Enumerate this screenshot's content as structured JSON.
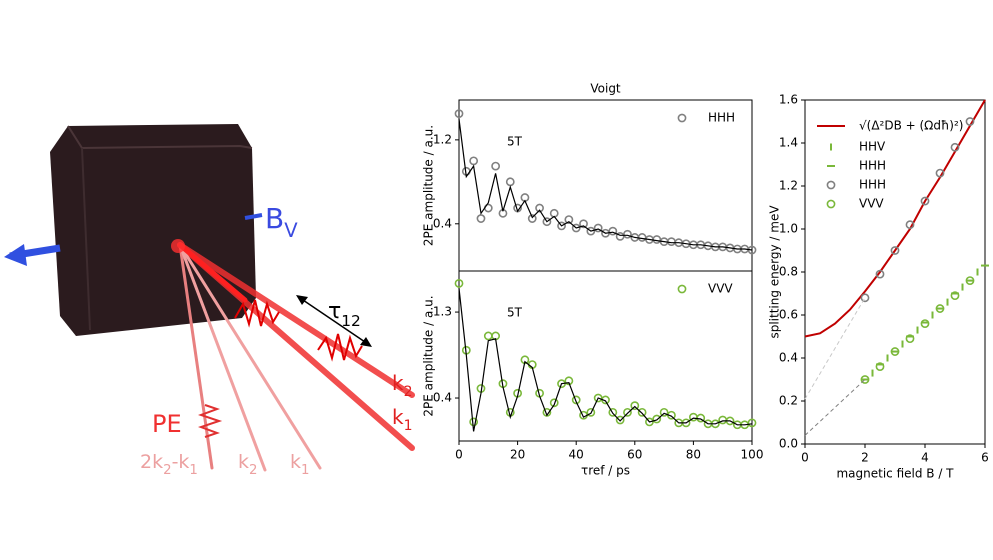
{
  "illustration": {
    "b_field": {
      "parts": [
        "B",
        "V"
      ]
    },
    "delay": {
      "parts": [
        "τ",
        "12"
      ]
    },
    "beam_k2": {
      "parts": [
        "k",
        "2"
      ]
    },
    "beam_k1": {
      "parts": [
        "k",
        "1"
      ]
    },
    "echo": {
      "parts": [
        "PE"
      ]
    },
    "out_echo": {
      "parts": [
        "2k",
        "2",
        "-k",
        "1"
      ]
    },
    "out_k2": {
      "parts": [
        "k",
        "2"
      ]
    },
    "out_k1": {
      "parts": [
        "k",
        "1"
      ]
    }
  },
  "chart_data": [
    {
      "type": "scatter",
      "title": "Voigt",
      "ylabel": "2PE amplitude / a.u.",
      "annotation": "5T",
      "xlim": [
        0,
        100
      ],
      "ylim": [
        -0.05,
        1.58
      ],
      "yticks": [
        0.4,
        1.2
      ],
      "x": [
        0,
        2.5,
        5,
        7.5,
        10,
        12.5,
        15,
        17.5,
        20,
        22.5,
        25,
        27.5,
        30,
        32.5,
        35,
        37.5,
        40,
        42.5,
        45,
        47.5,
        50,
        52.5,
        55,
        57.5,
        60,
        62.5,
        65,
        67.5,
        70,
        72.5,
        75,
        77.5,
        80,
        82.5,
        85,
        87.5,
        90,
        92.5,
        95,
        97.5,
        100
      ],
      "series": [
        {
          "name": "HHH",
          "color": "#808080",
          "marker": "circle",
          "values": [
            1.45,
            0.9,
            1.0,
            0.45,
            0.55,
            0.95,
            0.5,
            0.8,
            0.55,
            0.65,
            0.45,
            0.55,
            0.42,
            0.5,
            0.38,
            0.44,
            0.36,
            0.4,
            0.33,
            0.36,
            0.31,
            0.33,
            0.28,
            0.3,
            0.27,
            0.27,
            0.25,
            0.25,
            0.23,
            0.23,
            0.22,
            0.21,
            0.2,
            0.2,
            0.19,
            0.18,
            0.18,
            0.17,
            0.16,
            0.16,
            0.15
          ]
        },
        {
          "color": "#000000",
          "marker": "line",
          "values": [
            1.4,
            0.85,
            0.95,
            0.5,
            0.6,
            0.88,
            0.52,
            0.75,
            0.52,
            0.62,
            0.46,
            0.53,
            0.42,
            0.47,
            0.38,
            0.42,
            0.36,
            0.38,
            0.33,
            0.35,
            0.31,
            0.32,
            0.29,
            0.29,
            0.27,
            0.26,
            0.25,
            0.24,
            0.23,
            0.22,
            0.22,
            0.21,
            0.2,
            0.2,
            0.19,
            0.18,
            0.18,
            0.17,
            0.16,
            0.16,
            0.15
          ]
        }
      ]
    },
    {
      "type": "scatter",
      "ylabel": "2PE amplitude / a.u.",
      "xlabel": "τref / ps",
      "annotation": "5T",
      "xlim": [
        0,
        100
      ],
      "ylim": [
        -0.05,
        1.73
      ],
      "yticks": [
        0.4,
        1.3
      ],
      "xticks": [
        0,
        20,
        40,
        60,
        80,
        100
      ],
      "x": [
        0,
        2.5,
        5,
        7.5,
        10,
        12.5,
        15,
        17.5,
        20,
        22.5,
        25,
        27.5,
        30,
        32.5,
        35,
        37.5,
        40,
        42.5,
        45,
        47.5,
        50,
        52.5,
        55,
        57.5,
        60,
        62.5,
        65,
        67.5,
        70,
        72.5,
        75,
        77.5,
        80,
        82.5,
        85,
        87.5,
        90,
        92.5,
        95,
        97.5,
        100
      ],
      "series": [
        {
          "name": "VVV",
          "color": "#7ab83a",
          "marker": "circle",
          "values": [
            1.6,
            0.9,
            0.15,
            0.5,
            1.05,
            1.05,
            0.55,
            0.25,
            0.45,
            0.8,
            0.75,
            0.45,
            0.25,
            0.35,
            0.55,
            0.58,
            0.38,
            0.22,
            0.25,
            0.4,
            0.38,
            0.25,
            0.17,
            0.25,
            0.32,
            0.25,
            0.15,
            0.18,
            0.25,
            0.22,
            0.14,
            0.14,
            0.2,
            0.19,
            0.13,
            0.13,
            0.17,
            0.16,
            0.12,
            0.12,
            0.14
          ]
        },
        {
          "color": "#000000",
          "marker": "line",
          "values": [
            1.55,
            0.85,
            0.05,
            0.45,
            1.0,
            1.02,
            0.52,
            0.2,
            0.42,
            0.78,
            0.72,
            0.42,
            0.22,
            0.33,
            0.55,
            0.56,
            0.36,
            0.2,
            0.24,
            0.4,
            0.37,
            0.24,
            0.16,
            0.24,
            0.31,
            0.24,
            0.15,
            0.17,
            0.24,
            0.21,
            0.14,
            0.14,
            0.19,
            0.18,
            0.13,
            0.13,
            0.16,
            0.16,
            0.12,
            0.12,
            0.13
          ]
        }
      ]
    },
    {
      "type": "scatter",
      "xlabel": "magnetic field B / T",
      "ylabel": "splitting energy / meV",
      "xlim": [
        0,
        6
      ],
      "ylim": [
        0,
        1.6
      ],
      "xticks": [
        0,
        2,
        4,
        6
      ],
      "yticks": [
        {
          "value": 0,
          "label": "0.0"
        },
        0.2,
        0.4,
        0.6,
        0.8,
        {
          "value": 1,
          "label": "1.0"
        },
        1.2,
        1.4,
        1.6
      ],
      "series": [
        {
          "name": "√(Δ²DB + (Ωdħ)²)",
          "color": "#c00000",
          "marker": "line",
          "x": [
            0,
            0.5,
            1,
            1.5,
            2,
            2.5,
            3,
            3.5,
            4,
            4.5,
            5,
            5.5,
            6
          ],
          "values": [
            0.5,
            0.515,
            0.56,
            0.625,
            0.71,
            0.8,
            0.9,
            1.0,
            1.13,
            1.24,
            1.36,
            1.48,
            1.6
          ]
        },
        {
          "name": "HHV",
          "color": "#7ab83a",
          "marker": "vbar",
          "x": [
            2.25,
            2.75,
            3.25,
            3.75,
            4.25,
            4.75,
            5.25,
            5.75
          ],
          "values": [
            0.33,
            0.4,
            0.465,
            0.53,
            0.6,
            0.66,
            0.73,
            0.8
          ]
        },
        {
          "name": "HHH",
          "color": "#7ab83a",
          "marker": "hbar",
          "x": [
            2,
            2.5,
            3,
            3.5,
            4,
            4.5,
            5,
            5.5,
            6
          ],
          "values": [
            0.3,
            0.37,
            0.43,
            0.5,
            0.565,
            0.63,
            0.7,
            0.76,
            0.83
          ]
        },
        {
          "name": "HHH",
          "color": "#808080",
          "marker": "circle",
          "x": [
            2,
            2.5,
            3,
            3.5,
            4,
            4.5,
            5,
            5.5
          ],
          "values": [
            0.68,
            0.79,
            0.9,
            1.02,
            1.13,
            1.26,
            1.38,
            1.5
          ]
        },
        {
          "name": "VVV",
          "color": "#7ab83a",
          "marker": "circle",
          "x": [
            2,
            2.5,
            3,
            3.5,
            4,
            4.5,
            5,
            5.5
          ],
          "values": [
            0.3,
            0.36,
            0.43,
            0.49,
            0.56,
            0.63,
            0.69,
            0.76
          ]
        },
        {
          "color": "#c8c8c8",
          "marker": "dash",
          "x": [
            0,
            2
          ],
          "values": [
            0.21,
            0.68
          ]
        },
        {
          "color": "#808080",
          "marker": "dash",
          "x": [
            0,
            2
          ],
          "values": [
            0.04,
            0.3
          ]
        }
      ]
    }
  ]
}
